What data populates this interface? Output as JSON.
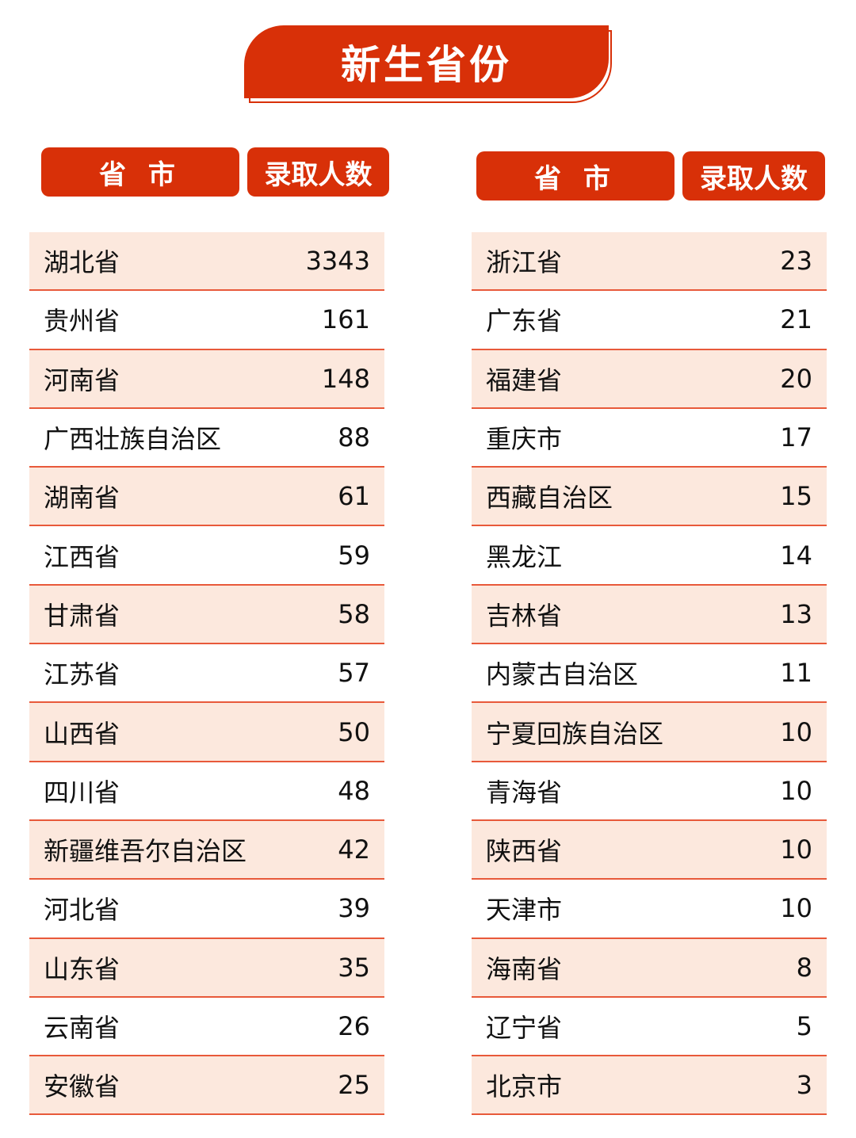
{
  "title": "新生省份",
  "header": {
    "province": "省 市",
    "count": "录取人数"
  },
  "colors": {
    "accent": "#d83008",
    "row_alt": "#fce8dd"
  },
  "left": [
    [
      "湖北省",
      "3343"
    ],
    [
      "贵州省",
      "161"
    ],
    [
      "河南省",
      "148"
    ],
    [
      "广西壮族自治区",
      "88"
    ],
    [
      "湖南省",
      "61"
    ],
    [
      "江西省",
      "59"
    ],
    [
      "甘肃省",
      "58"
    ],
    [
      "江苏省",
      "57"
    ],
    [
      "山西省",
      "50"
    ],
    [
      "四川省",
      "48"
    ],
    [
      "新疆维吾尔自治区",
      "42"
    ],
    [
      "河北省",
      "39"
    ],
    [
      "山东省",
      "35"
    ],
    [
      "云南省",
      "26"
    ],
    [
      "安徽省",
      "25"
    ]
  ],
  "right": [
    [
      "浙江省",
      "23"
    ],
    [
      "广东省",
      "21"
    ],
    [
      "福建省",
      "20"
    ],
    [
      "重庆市",
      "17"
    ],
    [
      "西藏自治区",
      "15"
    ],
    [
      "黑龙江",
      "14"
    ],
    [
      "吉林省",
      "13"
    ],
    [
      "内蒙古自治区",
      "11"
    ],
    [
      "宁夏回族自治区",
      "10"
    ],
    [
      "青海省",
      "10"
    ],
    [
      "陕西省",
      "10"
    ],
    [
      "天津市",
      "10"
    ],
    [
      "海南省",
      "8"
    ],
    [
      "辽宁省",
      "5"
    ],
    [
      "北京市",
      "3"
    ]
  ]
}
